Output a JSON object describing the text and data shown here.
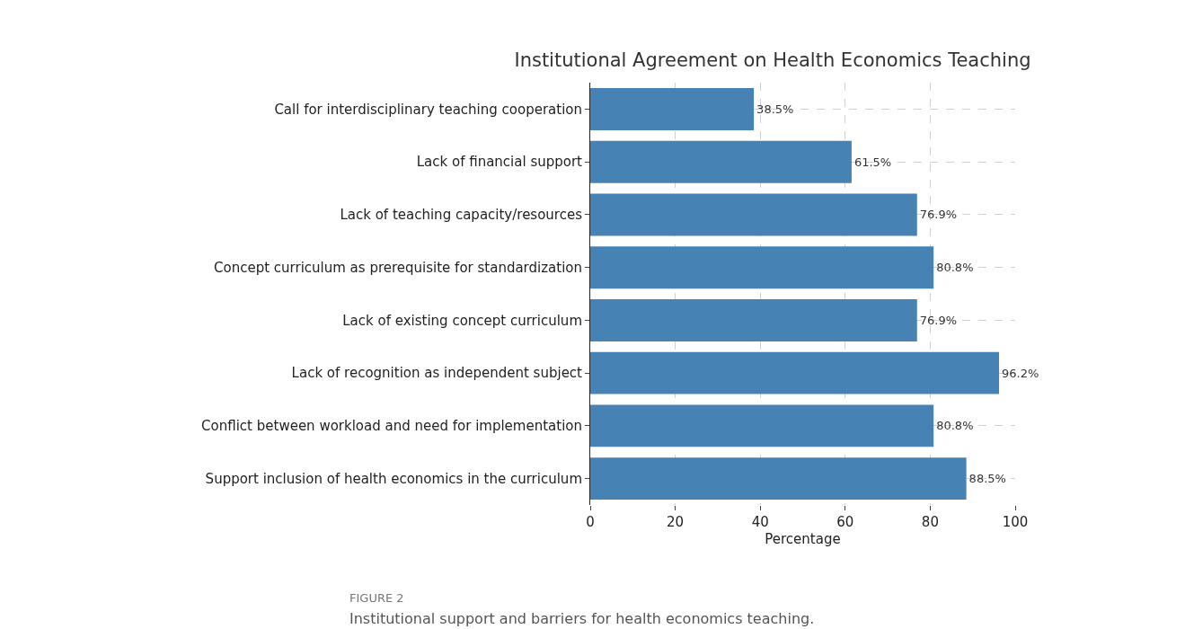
{
  "chart_data": {
    "type": "bar",
    "orientation": "horizontal",
    "title": "Institutional Agreement on Health Economics Teaching",
    "xlabel": "Percentage",
    "categories": [
      "Call for interdisciplinary teaching cooperation",
      "Lack of financial support",
      "Lack of teaching capacity/resources",
      "Concept curriculum as prerequisite for standardization",
      "Lack of existing concept curriculum",
      "Lack of recognition as independent subject",
      "Conflict between workload and need for implementation",
      "Support inclusion of health economics in the curriculum"
    ],
    "values": [
      38.5,
      61.5,
      76.9,
      80.8,
      76.9,
      96.2,
      80.8,
      88.5
    ],
    "value_labels": [
      "38.5%",
      "61.5%",
      "76.9%",
      "80.8%",
      "76.9%",
      "96.2%",
      "80.8%",
      "88.5%"
    ],
    "color": "#4682b4",
    "xlim": [
      0,
      100
    ],
    "xticks": [
      0,
      20,
      40,
      60,
      80,
      100
    ],
    "grid": true,
    "line_style": "dashed",
    "annotations": [
      "FIGURE 2",
      "Institutional support and barriers for health economics teaching."
    ]
  }
}
